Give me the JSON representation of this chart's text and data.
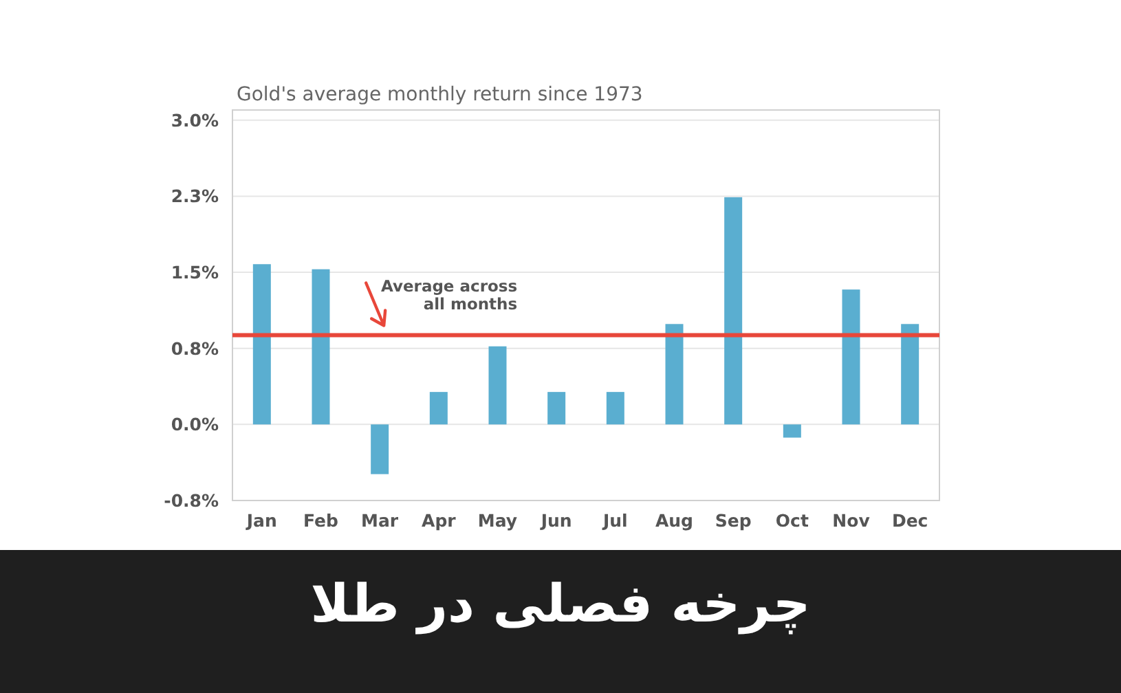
{
  "chart_data": {
    "type": "bar",
    "title": "چرخه فصلی در طلا",
    "subtitle": "Gold's average monthly return since 1973",
    "categories": [
      "Jan",
      "Feb",
      "Mar",
      "Apr",
      "May",
      "Jun",
      "Jul",
      "Aug",
      "Sep",
      "Oct",
      "Nov",
      "Dec"
    ],
    "values": [
      1.58,
      1.53,
      -0.49,
      0.32,
      0.77,
      0.32,
      0.32,
      0.99,
      2.24,
      -0.13,
      1.33,
      0.99
    ],
    "color": "#5aaed0",
    "ylim": [
      -0.75,
      3.1
    ],
    "yticks": [
      {
        "value": -0.75,
        "label": "-0.8%"
      },
      {
        "value": 0,
        "label": "0.0%"
      },
      {
        "value": 0.75,
        "label": "0.8%"
      },
      {
        "value": 1.5,
        "label": "1.5%"
      },
      {
        "value": 2.25,
        "label": "2.3%"
      },
      {
        "value": 3.0,
        "label": "3.0%"
      }
    ],
    "grid": "y",
    "ref_lines": [
      {
        "axis": "y",
        "value": 0.88,
        "label": "Average across all months",
        "color": "#e8473a"
      }
    ]
  }
}
